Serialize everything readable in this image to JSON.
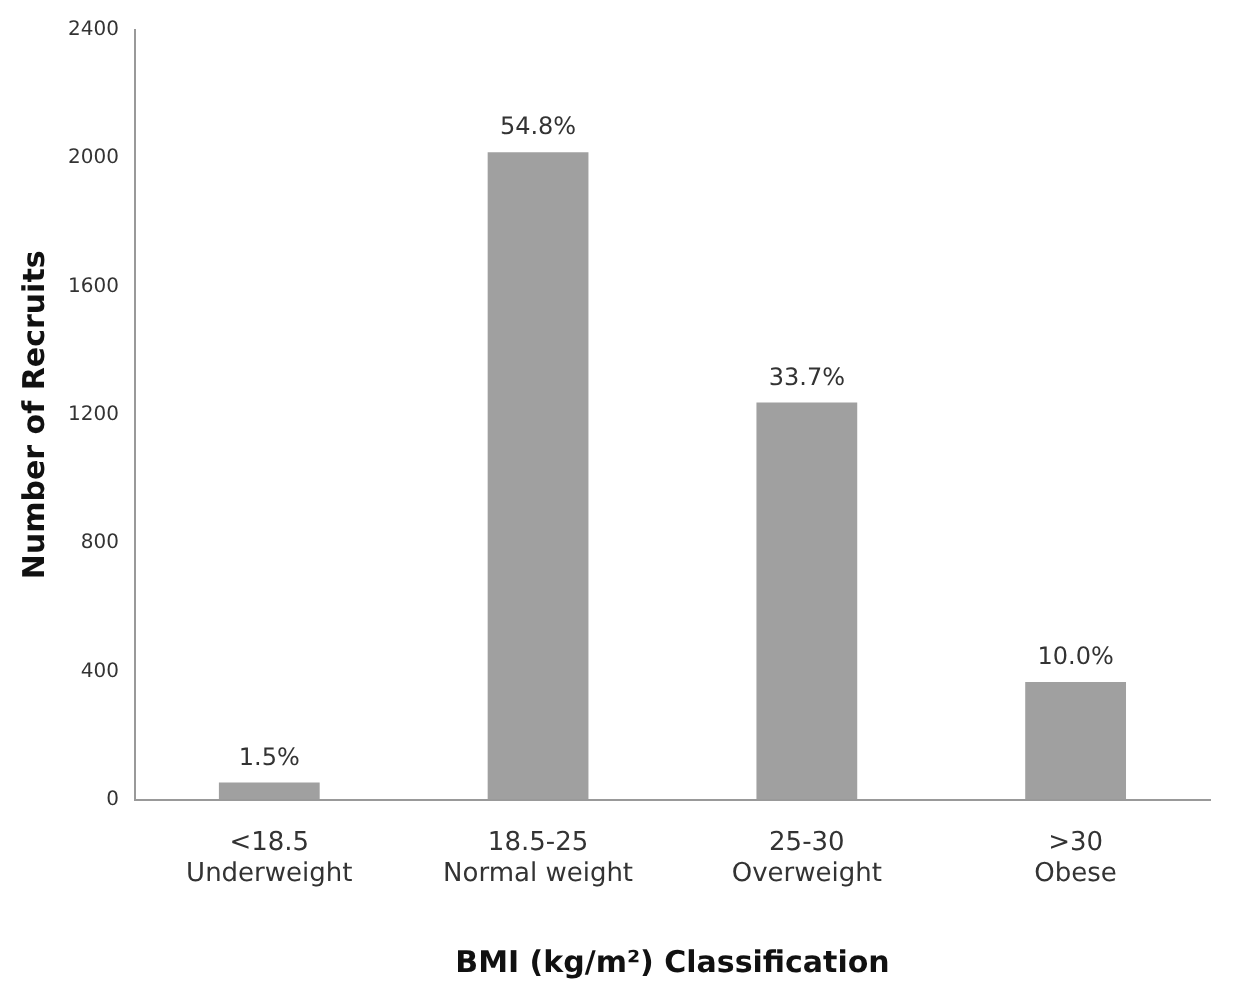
{
  "chart_data": {
    "type": "bar",
    "xlabel": "BMI (kg/m²) Classification",
    "ylabel": "Number of Recruits",
    "categories": [
      "<18.5\nUnderweight",
      "18.5-25\nNormal weight",
      "25-30\nOverweight",
      ">30\nObese"
    ],
    "values": [
      53,
      2019,
      1238,
      367
    ],
    "annotations": [
      {
        "text": "1.5%",
        "x": "<18.5\nUnderweight",
        "y": 53
      },
      {
        "text": "54.8%",
        "x": "18.5-25\nNormal weight",
        "y": 2019
      },
      {
        "text": "33.7%",
        "x": "25-30\nOverweight",
        "y": 1238
      },
      {
        "text": "10.0%",
        "x": ">30\nObese",
        "y": 367
      }
    ],
    "color": "#a0a0a0",
    "ylim": [
      0,
      2400
    ],
    "yticks": [
      0,
      400,
      800,
      1200,
      1600,
      2000,
      2400
    ],
    "grid": false,
    "legend": false
  }
}
